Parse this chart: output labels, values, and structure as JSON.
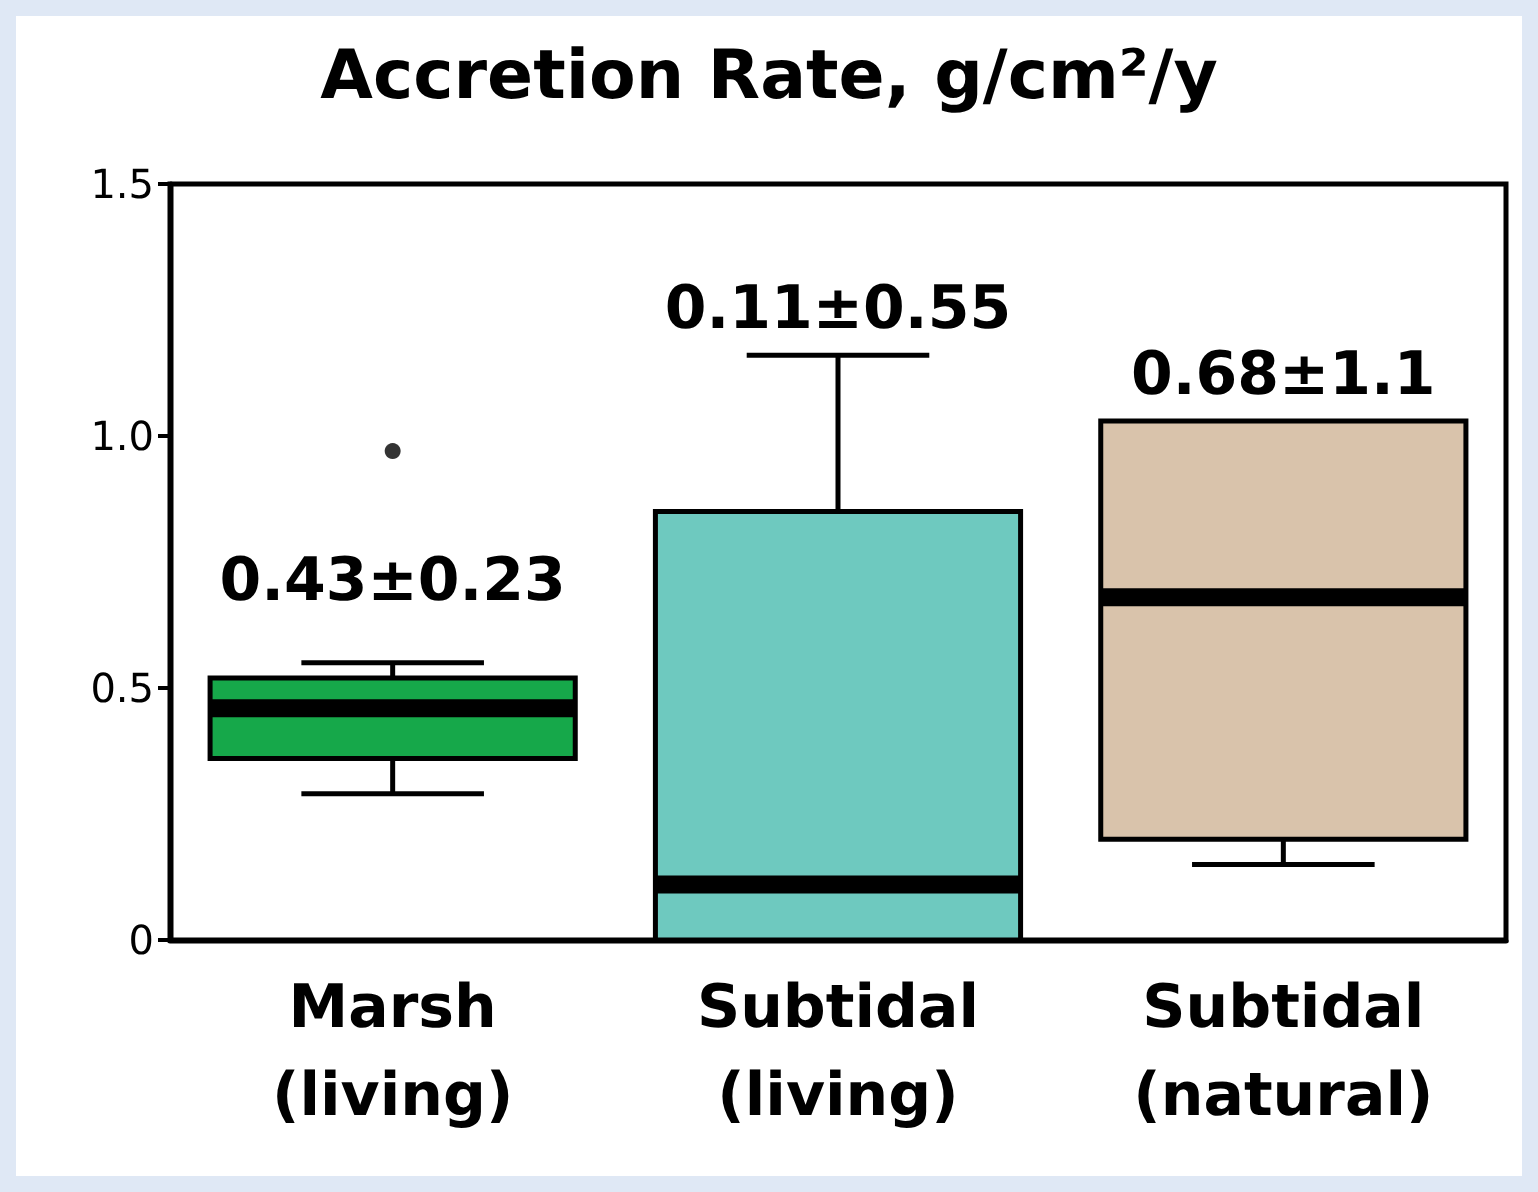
{
  "chart_data": {
    "type": "box",
    "title": "Accretion Rate, g/cm²/y",
    "categories": [
      "Marsh\n(living)",
      "Subtidal\n(living)",
      "Subtidal\n(natural)"
    ],
    "colors": [
      "#16a84a",
      "#6ec9bf",
      "#d9c3ab"
    ],
    "boxes": [
      {
        "low": 0.29,
        "q1": 0.36,
        "median": 0.46,
        "q3": 0.52,
        "high": 0.55,
        "outliers": [
          0.97
        ]
      },
      {
        "low": 0,
        "q1": 0,
        "median": 0.11,
        "q3": 0.85,
        "high": 1.16
      },
      {
        "low": 0.15,
        "q1": 0.2,
        "median": 0.68,
        "q3": 1.03,
        "high": 1.03
      }
    ],
    "ylim": [
      0,
      1.5
    ],
    "yticks": [
      {
        "value": 0,
        "label": "0"
      },
      {
        "value": 0.5,
        "label": "0.5"
      },
      {
        "value": 1,
        "label": "1.0"
      },
      {
        "value": 1.5,
        "label": "1.5"
      }
    ],
    "annotations": [
      "0.43±0.23",
      "0.11±0.55",
      "0.68±1.1"
    ],
    "grid": false
  }
}
